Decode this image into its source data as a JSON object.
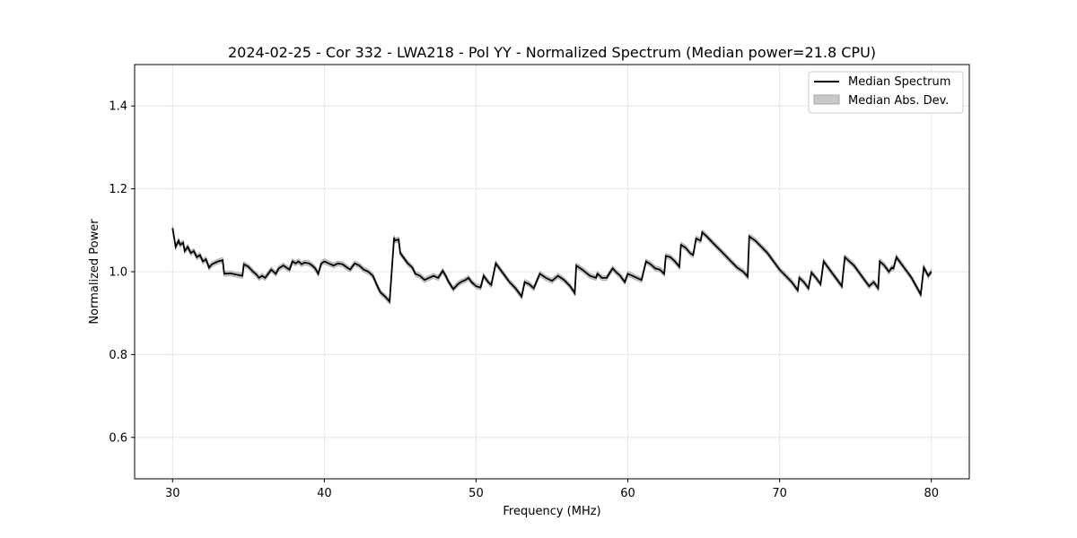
{
  "chart_data": {
    "type": "line",
    "title": "2024-02-25 - Cor 332 - LWA218 - Pol YY - Normalized Spectrum (Median power=21.8 CPU)",
    "xlabel": "Frequency (MHz)",
    "ylabel": "Normalized Power",
    "xlim": [
      27.5,
      82.5
    ],
    "ylim": [
      0.5,
      1.5
    ],
    "xticks": [
      30,
      40,
      50,
      60,
      70,
      80
    ],
    "yticks": [
      0.6,
      0.8,
      1.0,
      1.2,
      1.4
    ],
    "xtick_labels": [
      "30",
      "40",
      "50",
      "60",
      "70",
      "80"
    ],
    "ytick_labels": [
      "0.6",
      "0.8",
      "1.0",
      "1.2",
      "1.4"
    ],
    "grid": true,
    "legend_position": "top-right",
    "colors": {
      "line": "#000000",
      "band": "#c8c8c8",
      "band_edge": "#a8a8a8",
      "grid": "#e6e6e6"
    },
    "series": [
      {
        "name": "Median Spectrum",
        "kind": "line",
        "x": [
          30.0,
          30.2,
          30.4,
          30.5,
          30.7,
          30.8,
          31.0,
          31.2,
          31.4,
          31.6,
          31.8,
          32.0,
          32.2,
          32.4,
          32.6,
          33.0,
          33.3,
          33.4,
          33.8,
          34.2,
          34.6,
          34.7,
          35.0,
          35.3,
          35.5,
          35.7,
          35.9,
          36.1,
          36.3,
          36.5,
          36.8,
          37.0,
          37.3,
          37.5,
          37.7,
          37.9,
          38.1,
          38.3,
          38.5,
          38.7,
          39.0,
          39.2,
          39.4,
          39.6,
          39.8,
          40.0,
          40.3,
          40.6,
          40.9,
          41.2,
          41.5,
          41.7,
          42.0,
          42.3,
          42.6,
          42.9,
          43.2,
          43.5,
          43.7,
          44.0,
          44.3,
          44.6,
          44.65,
          44.9,
          45.0,
          45.2,
          45.5,
          45.8,
          46.0,
          46.3,
          46.6,
          46.9,
          47.2,
          47.5,
          47.8,
          48.0,
          48.2,
          48.5,
          48.8,
          49.0,
          49.3,
          49.5,
          49.7,
          50.0,
          50.3,
          50.5,
          50.8,
          51.0,
          51.3,
          51.5,
          51.8,
          52.2,
          52.6,
          53.0,
          53.2,
          53.5,
          53.8,
          54.2,
          54.6,
          55.0,
          55.4,
          55.8,
          56.2,
          56.5,
          56.6,
          57.0,
          57.5,
          57.9,
          58.0,
          58.3,
          58.6,
          59.0,
          59.2,
          59.5,
          59.8,
          60.0,
          60.3,
          60.6,
          60.9,
          61.2,
          61.5,
          61.8,
          62.1,
          62.4,
          62.5,
          62.8,
          63.1,
          63.4,
          63.5,
          63.8,
          64.1,
          64.3,
          64.5,
          64.8,
          64.9,
          65.2,
          65.6,
          66.0,
          66.4,
          66.8,
          67.2,
          67.6,
          67.9,
          68.0,
          68.4,
          68.8,
          69.2,
          69.6,
          70.0,
          70.4,
          70.8,
          71.2,
          71.3,
          71.6,
          71.9,
          72.1,
          72.4,
          72.7,
          72.9,
          73.2,
          73.5,
          73.8,
          74.1,
          74.3,
          74.6,
          74.9,
          75.1,
          75.4,
          75.7,
          75.9,
          76.2,
          76.5,
          76.6,
          76.9,
          77.2,
          77.4,
          77.5,
          77.7,
          77.9,
          78.1,
          78.4,
          78.7,
          79.0,
          79.3,
          79.5,
          79.8,
          80.0
        ],
        "y": [
          1.105,
          1.06,
          1.075,
          1.065,
          1.07,
          1.05,
          1.06,
          1.045,
          1.05,
          1.035,
          1.04,
          1.025,
          1.03,
          1.01,
          1.018,
          1.025,
          1.028,
          0.995,
          0.996,
          0.993,
          0.99,
          1.018,
          1.012,
          1.0,
          0.994,
          0.985,
          0.99,
          0.985,
          0.995,
          1.005,
          0.995,
          1.008,
          1.015,
          1.01,
          1.005,
          1.025,
          1.02,
          1.025,
          1.018,
          1.022,
          1.02,
          1.015,
          1.008,
          0.995,
          1.02,
          1.025,
          1.02,
          1.015,
          1.02,
          1.018,
          1.01,
          1.005,
          1.02,
          1.015,
          1.005,
          1.0,
          0.99,
          0.965,
          0.95,
          0.94,
          0.928,
          1.082,
          1.075,
          1.078,
          1.045,
          1.035,
          1.02,
          1.01,
          0.995,
          0.99,
          0.98,
          0.985,
          0.99,
          0.985,
          1.002,
          0.99,
          0.975,
          0.958,
          0.97,
          0.975,
          0.98,
          0.985,
          0.975,
          0.965,
          0.962,
          0.99,
          0.975,
          0.968,
          1.02,
          1.01,
          0.995,
          0.975,
          0.96,
          0.94,
          0.975,
          0.97,
          0.96,
          0.995,
          0.985,
          0.978,
          0.99,
          0.98,
          0.965,
          0.948,
          1.015,
          1.005,
          0.99,
          0.985,
          0.995,
          0.985,
          0.985,
          1.008,
          1.0,
          0.99,
          0.975,
          0.995,
          0.99,
          0.985,
          0.98,
          1.025,
          1.018,
          1.008,
          1.005,
          0.995,
          1.038,
          1.035,
          1.025,
          1.012,
          1.065,
          1.058,
          1.045,
          1.04,
          1.08,
          1.075,
          1.095,
          1.085,
          1.07,
          1.055,
          1.04,
          1.025,
          1.01,
          1.0,
          0.988,
          1.085,
          1.075,
          1.06,
          1.045,
          1.025,
          1.005,
          0.99,
          0.975,
          0.955,
          0.985,
          0.975,
          0.96,
          0.998,
          0.985,
          0.97,
          1.025,
          1.01,
          0.995,
          0.98,
          0.965,
          1.035,
          1.025,
          1.015,
          1.005,
          0.99,
          0.975,
          0.965,
          0.975,
          0.96,
          1.025,
          1.015,
          1.0,
          1.01,
          1.008,
          1.035,
          1.025,
          1.015,
          1.0,
          0.985,
          0.965,
          0.945,
          1.01,
          0.99,
          1.0
        ]
      },
      {
        "name": "Median Abs. Dev.",
        "kind": "band",
        "half_width": 0.006
      }
    ]
  }
}
